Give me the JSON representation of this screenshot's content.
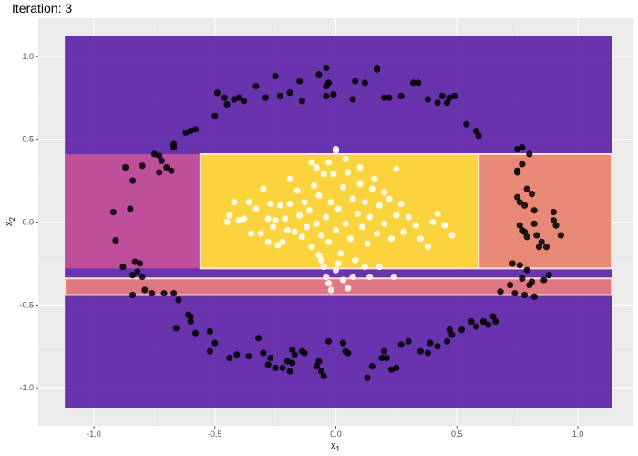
{
  "chart_data": {
    "type": "scatter",
    "title": "Iteration: 3",
    "xlabel": "x",
    "xlabel_sub": "1",
    "ylabel": "x",
    "ylabel_sub": "2",
    "xlim": [
      -1.23,
      1.23
    ],
    "ylim": [
      -1.23,
      1.23
    ],
    "xticks": [
      -1.0,
      -0.5,
      0.0,
      0.5,
      1.0
    ],
    "xtick_labels": [
      "-1.0",
      "-0.5",
      "0.0",
      "0.5",
      "1.0"
    ],
    "yticks": [
      1.0,
      0.5,
      0.0,
      -0.5,
      -1.0
    ],
    "ytick_labels": [
      "1.0",
      "0.5",
      "0.0",
      "-0.5",
      "-1.0"
    ],
    "grid": true,
    "background_color": "#ebebeb",
    "regions": [
      {
        "x": [
          -1.12,
          1.14
        ],
        "y": [
          -1.12,
          1.12
        ],
        "fill": "#5c1fa7",
        "fill_opacity": 0.9,
        "outline": false
      },
      {
        "x": [
          -1.12,
          -0.56
        ],
        "y": [
          -0.28,
          0.41
        ],
        "fill": "#c4509a",
        "fill_opacity": 0.95,
        "outline": false
      },
      {
        "x": [
          0.59,
          1.14
        ],
        "y": [
          -0.28,
          0.41
        ],
        "fill": "#ec8b74",
        "fill_opacity": 0.97,
        "outline": true
      },
      {
        "x": [
          -1.12,
          1.14
        ],
        "y": [
          -0.44,
          -0.34
        ],
        "fill": "#e27b80",
        "fill_opacity": 0.97,
        "outline": true
      },
      {
        "x": [
          -0.56,
          0.59
        ],
        "y": [
          -0.28,
          0.41
        ],
        "fill": "#fad33d",
        "fill_opacity": 1,
        "outline": true
      }
    ],
    "series": [
      {
        "color": "#000000",
        "points": [
          [
            -0.92,
            0.06
          ],
          [
            -0.91,
            -0.11
          ],
          [
            -0.87,
            0.33
          ],
          [
            -0.84,
            0.25
          ],
          [
            -0.85,
            0.08
          ],
          [
            -0.88,
            -0.27
          ],
          [
            -0.83,
            -0.24
          ],
          [
            -0.81,
            -0.25
          ],
          [
            -0.8,
            0.34
          ],
          [
            -0.82,
            -0.3
          ],
          [
            -0.8,
            -0.33
          ],
          [
            -0.84,
            -0.32
          ],
          [
            -0.84,
            -0.44
          ],
          [
            -0.79,
            -0.41
          ],
          [
            -0.76,
            -0.43
          ],
          [
            -0.75,
            0.41
          ],
          [
            -0.73,
            0.4
          ],
          [
            -0.72,
            0.37
          ],
          [
            -0.73,
            0.3
          ],
          [
            -0.7,
            0.33
          ],
          [
            -0.68,
            0.31
          ],
          [
            -0.67,
            0.45
          ],
          [
            -0.67,
            0.47
          ],
          [
            -0.71,
            -0.43
          ],
          [
            -0.67,
            -0.43
          ],
          [
            -0.65,
            -0.47
          ],
          [
            -0.66,
            -0.64
          ],
          [
            -0.6,
            -0.6
          ],
          [
            -0.61,
            -0.56
          ],
          [
            -0.6,
            -0.57
          ],
          [
            -0.62,
            0.54
          ],
          [
            -0.6,
            0.55
          ],
          [
            -0.58,
            0.56
          ],
          [
            -0.5,
            0.64
          ],
          [
            -0.49,
            0.78
          ],
          [
            -0.46,
            0.75
          ],
          [
            -0.45,
            0.71
          ],
          [
            -0.42,
            0.74
          ],
          [
            -0.4,
            0.75
          ],
          [
            -0.38,
            0.73
          ],
          [
            -0.33,
            0.82
          ],
          [
            -0.29,
            0.75
          ],
          [
            -0.25,
            0.88
          ],
          [
            -0.23,
            0.76
          ],
          [
            -0.19,
            0.78
          ],
          [
            -0.15,
            0.85
          ],
          [
            -0.14,
            0.73
          ],
          [
            -0.07,
            0.89
          ],
          [
            -0.03,
            0.84
          ],
          [
            -0.04,
            0.82
          ],
          [
            -0.04,
            0.76
          ],
          [
            -0.01,
            0.77
          ],
          [
            -0.04,
            0.93
          ],
          [
            0.07,
            0.74
          ],
          [
            0.08,
            0.85
          ],
          [
            0.12,
            0.84
          ],
          [
            0.17,
            0.93
          ],
          [
            0.17,
            0.92
          ],
          [
            0.2,
            0.75
          ],
          [
            0.22,
            0.75
          ],
          [
            0.27,
            0.76
          ],
          [
            0.32,
            0.84
          ],
          [
            0.34,
            0.84
          ],
          [
            0.38,
            0.74
          ],
          [
            0.42,
            0.72
          ],
          [
            0.44,
            0.76
          ],
          [
            0.46,
            0.72
          ],
          [
            0.49,
            0.76
          ],
          [
            0.47,
            0.75
          ],
          [
            0.54,
            0.59
          ],
          [
            0.58,
            0.55
          ],
          [
            0.59,
            0.52
          ],
          [
            -0.58,
            -0.67
          ],
          [
            -0.52,
            -0.66
          ],
          [
            -0.5,
            -0.73
          ],
          [
            -0.52,
            -0.78
          ],
          [
            -0.44,
            -0.82
          ],
          [
            -0.41,
            -0.8
          ],
          [
            -0.36,
            -0.81
          ],
          [
            -0.32,
            -0.7
          ],
          [
            -0.3,
            -0.79
          ],
          [
            -0.28,
            -0.86
          ],
          [
            -0.27,
            -0.82
          ],
          [
            -0.25,
            -0.88
          ],
          [
            -0.22,
            -0.88
          ],
          [
            -0.2,
            -0.84
          ],
          [
            -0.19,
            -0.9
          ],
          [
            -0.18,
            -0.85
          ],
          [
            -0.17,
            -0.8
          ],
          [
            -0.18,
            -0.77
          ],
          [
            -0.14,
            -0.78
          ],
          [
            -0.13,
            -0.79
          ],
          [
            -0.08,
            -0.87
          ],
          [
            -0.07,
            -0.84
          ],
          [
            -0.06,
            -0.9
          ],
          [
            -0.05,
            -0.93
          ],
          [
            -0.03,
            -0.72
          ],
          [
            0.03,
            -0.73
          ],
          [
            0.04,
            -0.78
          ],
          [
            0.05,
            -0.79
          ],
          [
            0.13,
            -0.94
          ],
          [
            0.15,
            -0.87
          ],
          [
            0.19,
            -0.82
          ],
          [
            0.2,
            -0.78
          ],
          [
            0.21,
            -0.82
          ],
          [
            0.23,
            -0.89
          ],
          [
            0.25,
            -0.88
          ],
          [
            0.27,
            -0.74
          ],
          [
            0.3,
            -0.72
          ],
          [
            0.35,
            -0.78
          ],
          [
            0.38,
            -0.79
          ],
          [
            0.39,
            -0.73
          ],
          [
            0.42,
            -0.75
          ],
          [
            0.46,
            -0.72
          ],
          [
            0.47,
            -0.65
          ],
          [
            0.48,
            -0.68
          ],
          [
            0.52,
            -0.65
          ],
          [
            0.56,
            -0.6
          ],
          [
            0.58,
            -0.63
          ],
          [
            0.61,
            -0.6
          ],
          [
            0.61,
            -0.6
          ],
          [
            0.63,
            -0.62
          ],
          [
            0.65,
            -0.57
          ],
          [
            0.66,
            -0.6
          ],
          [
            0.68,
            -0.42
          ],
          [
            0.72,
            -0.38
          ],
          [
            0.74,
            -0.43
          ],
          [
            0.78,
            -0.44
          ],
          [
            0.8,
            -0.38
          ],
          [
            0.82,
            -0.45
          ],
          [
            0.73,
            -0.25
          ],
          [
            0.76,
            -0.26
          ],
          [
            0.79,
            -0.29
          ],
          [
            0.77,
            -0.34
          ],
          [
            0.81,
            -0.36
          ],
          [
            0.86,
            -0.35
          ],
          [
            0.88,
            -0.32
          ],
          [
            0.75,
            0.31
          ],
          [
            0.75,
            0.3
          ],
          [
            0.77,
            0.35
          ],
          [
            0.79,
            0.2
          ],
          [
            0.75,
            0.15
          ],
          [
            0.76,
            0.12
          ],
          [
            0.78,
            0.1
          ],
          [
            0.81,
            0.17
          ],
          [
            0.82,
            0.07
          ],
          [
            0.82,
            -0.01
          ],
          [
            0.76,
            -0.02
          ],
          [
            0.77,
            -0.05
          ],
          [
            0.78,
            -0.06
          ],
          [
            0.79,
            -0.09
          ],
          [
            0.83,
            -0.08
          ],
          [
            0.84,
            -0.15
          ],
          [
            0.85,
            -0.12
          ],
          [
            0.87,
            -0.15
          ],
          [
            0.9,
            0.01
          ],
          [
            0.91,
            -0.02
          ],
          [
            0.93,
            -0.08
          ],
          [
            0.9,
            0.06
          ],
          [
            0.75,
            0.44
          ],
          [
            0.77,
            0.45
          ],
          [
            0.8,
            0.41
          ]
        ]
      },
      {
        "color": "#ffffff",
        "points": [
          [
            -0.45,
            0.0
          ],
          [
            -0.42,
            0.12
          ],
          [
            -0.4,
            0.01
          ],
          [
            -0.38,
            0.02
          ],
          [
            -0.35,
            -0.07
          ],
          [
            -0.33,
            0.08
          ],
          [
            -0.31,
            -0.07
          ],
          [
            -0.28,
            0.02
          ],
          [
            -0.27,
            0.11
          ],
          [
            -0.26,
            -0.03
          ],
          [
            -0.25,
            0.01
          ],
          [
            -0.23,
            0.1
          ],
          [
            -0.22,
            -0.12
          ],
          [
            -0.21,
            0.02
          ],
          [
            -0.2,
            -0.05
          ],
          [
            -0.19,
            0.11
          ],
          [
            -0.17,
            -0.06
          ],
          [
            -0.16,
            0.19
          ],
          [
            -0.15,
            0.04
          ],
          [
            -0.14,
            -0.09
          ],
          [
            -0.13,
            0.12
          ],
          [
            -0.12,
            -0.03
          ],
          [
            -0.11,
            0.07
          ],
          [
            -0.1,
            -0.15
          ],
          [
            -0.09,
            0.22
          ],
          [
            -0.08,
            -0.01
          ],
          [
            -0.07,
            0.16
          ],
          [
            -0.06,
            -0.08
          ],
          [
            -0.05,
            0.29
          ],
          [
            -0.04,
            0.03
          ],
          [
            -0.03,
            -0.12
          ],
          [
            -0.02,
            0.12
          ],
          [
            -0.01,
            0.29
          ],
          [
            0.0,
            -0.05
          ],
          [
            0.0,
            0.43
          ],
          [
            0.01,
            0.08
          ],
          [
            0.02,
            -0.19
          ],
          [
            0.03,
            0.21
          ],
          [
            0.04,
            -0.01
          ],
          [
            0.05,
            0.3
          ],
          [
            0.06,
            -0.1
          ],
          [
            0.07,
            0.14
          ],
          [
            0.08,
            -0.23
          ],
          [
            0.09,
            0.05
          ],
          [
            0.1,
            0.23
          ],
          [
            0.11,
            -0.03
          ],
          [
            0.12,
            0.12
          ],
          [
            0.13,
            -0.13
          ],
          [
            0.14,
            0.03
          ],
          [
            0.15,
            0.2
          ],
          [
            0.17,
            -0.07
          ],
          [
            0.18,
            0.1
          ],
          [
            0.2,
            -0.01
          ],
          [
            0.22,
            0.14
          ],
          [
            0.23,
            -0.1
          ],
          [
            0.25,
            0.04
          ],
          [
            0.27,
            0.11
          ],
          [
            0.28,
            -0.06
          ],
          [
            0.3,
            0.03
          ],
          [
            0.33,
            -0.02
          ],
          [
            -0.07,
            -0.2
          ],
          [
            -0.05,
            -0.27
          ],
          [
            -0.04,
            -0.33
          ],
          [
            -0.03,
            -0.37
          ],
          [
            -0.02,
            -0.41
          ],
          [
            0.0,
            -0.29
          ],
          [
            0.01,
            -0.25
          ],
          [
            0.03,
            -0.35
          ],
          [
            -0.06,
            -0.23
          ],
          [
            0.05,
            -0.4
          ],
          [
            0.07,
            -0.33
          ],
          [
            0.12,
            -0.27
          ],
          [
            0.14,
            -0.33
          ],
          [
            0.18,
            -0.27
          ],
          [
            0.24,
            -0.33
          ],
          [
            -0.1,
            0.36
          ],
          [
            -0.08,
            0.33
          ],
          [
            -0.03,
            0.36
          ],
          [
            0.0,
            0.44
          ],
          [
            0.04,
            0.38
          ],
          [
            0.1,
            0.33
          ],
          [
            -0.19,
            0.26
          ],
          [
            0.25,
            0.32
          ],
          [
            -0.28,
            -0.12
          ],
          [
            0.35,
            -0.1
          ],
          [
            0.38,
            -0.15
          ],
          [
            0.4,
            0.0
          ],
          [
            0.42,
            0.05
          ],
          [
            0.45,
            -0.02
          ],
          [
            0.48,
            -0.08
          ],
          [
            -0.44,
            0.04
          ],
          [
            -0.36,
            0.12
          ],
          [
            -0.3,
            0.2
          ],
          [
            -0.24,
            -0.14
          ],
          [
            0.16,
            0.26
          ],
          [
            0.2,
            0.18
          ]
        ]
      }
    ]
  }
}
